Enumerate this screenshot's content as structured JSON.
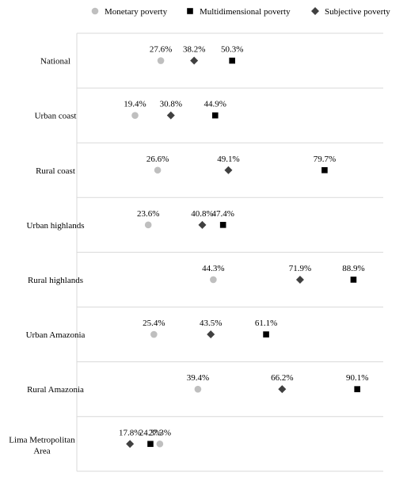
{
  "chart_data": {
    "type": "scatter",
    "orientation": "horizontal-dot-plot",
    "xlim": [
      0,
      100
    ],
    "grid": "horizontal separators",
    "legend_position": "top",
    "categories": [
      "National",
      "Urban coast",
      "Rural coast",
      "Urban highlands",
      "Rural highlands",
      "Urban Amazonia",
      "Rural Amazonia",
      "Lima Metropolitan Area"
    ],
    "series": [
      {
        "name": "Monetary poverty",
        "marker": "circle",
        "color": "#bfbfbf",
        "values": [
          27.6,
          19.4,
          26.6,
          23.6,
          44.3,
          25.4,
          39.4,
          27.3
        ],
        "labels": [
          "27.6%",
          "19.4%",
          "26.6%",
          "23.6%",
          "44.3%",
          "25.4%",
          "39.4%",
          "27.3%"
        ]
      },
      {
        "name": "Multidimensional poverty",
        "marker": "square",
        "color": "#000000",
        "values": [
          50.3,
          44.9,
          79.7,
          47.4,
          88.9,
          61.1,
          90.1,
          24.3
        ],
        "labels": [
          "50.3%",
          "44.9%",
          "79.7%",
          "47.4%",
          "88.9%",
          "61.1%",
          "90.1%",
          "24.3%"
        ]
      },
      {
        "name": "Subjective poverty",
        "marker": "diamond",
        "color": "#404040",
        "values": [
          38.2,
          30.8,
          49.1,
          40.8,
          71.9,
          43.5,
          66.2,
          17.8
        ],
        "labels": [
          "38.2%",
          "30.8%",
          "49.1%",
          "40.8%",
          "71.9%",
          "43.5%",
          "66.2%",
          "17.8%"
        ]
      }
    ]
  }
}
